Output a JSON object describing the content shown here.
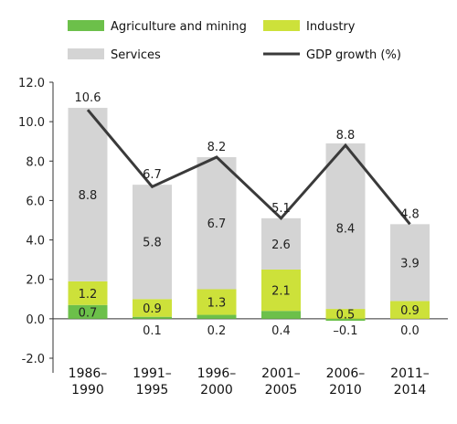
{
  "chart_data": {
    "type": "bar",
    "stacked": true,
    "categories": [
      "1986–\n1990",
      "1991–\n1995",
      "1996–\n2000",
      "2001–\n2005",
      "2006–\n2010",
      "2011–\n2014"
    ],
    "series": [
      {
        "name": "Agriculture and mining",
        "values": [
          0.7,
          0.1,
          0.2,
          0.4,
          -0.1,
          0.0
        ],
        "color": "#6cc04a"
      },
      {
        "name": "Industry",
        "values": [
          1.2,
          0.9,
          1.3,
          2.1,
          0.5,
          0.9
        ],
        "color": "#cde13a"
      },
      {
        "name": "Services",
        "values": [
          8.8,
          5.8,
          6.7,
          2.6,
          8.4,
          3.9
        ],
        "color": "#d4d4d4"
      }
    ],
    "line": {
      "name": "GDP growth (%)",
      "values": [
        10.6,
        6.7,
        8.2,
        5.1,
        8.8,
        4.8
      ],
      "color": "#3a3a3a"
    },
    "ylim": [
      -2.0,
      12.0
    ],
    "yticks": [
      "-2.0",
      "0.0",
      "2.0",
      "4.0",
      "6.0",
      "8.0",
      "10.0",
      "12.0"
    ],
    "legend_position": "top",
    "grid": false,
    "labels": {
      "agri": [
        "0.7",
        "0.1",
        "0.2",
        "0.4",
        "–0.1",
        "0.0"
      ],
      "industry": [
        "1.2",
        "0.9",
        "1.3",
        "2.1",
        "0.5",
        "0.9"
      ],
      "services": [
        "8.8",
        "5.8",
        "6.7",
        "2.6",
        "8.4",
        "3.9"
      ],
      "gdp": [
        "10.6",
        "6.7",
        "8.2",
        "5.1",
        "8.8",
        "4.8"
      ]
    }
  }
}
